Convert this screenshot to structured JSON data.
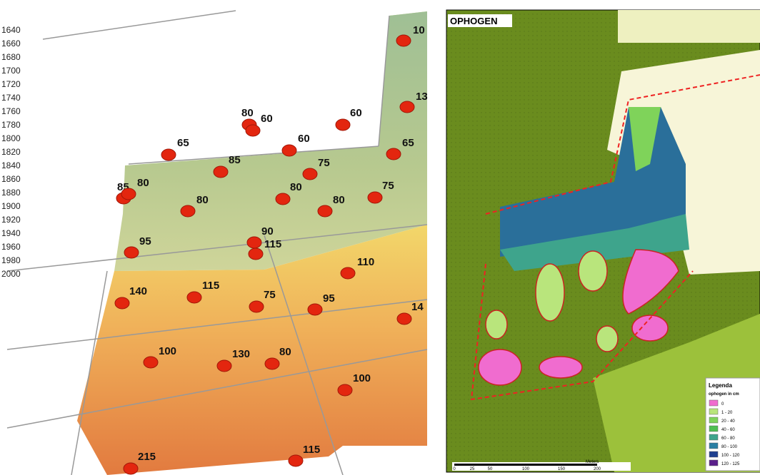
{
  "left_map": {
    "scale_labels": [
      "1640",
      "1660",
      "1680",
      "1700",
      "1720",
      "1740",
      "1760",
      "1780",
      "1800",
      "1820",
      "1840",
      "1860",
      "1880",
      "1900",
      "1920",
      "1940",
      "1960",
      "1980",
      "2000"
    ],
    "points": [
      "10",
      "13",
      "80",
      "60",
      "60",
      "65",
      "60",
      "65",
      "85",
      "75",
      "85",
      "80",
      "80",
      "80",
      "80",
      "75",
      "95",
      "90",
      "115",
      "110",
      "140",
      "115",
      "75",
      "95",
      "14",
      "100",
      "130",
      "80",
      "100",
      "215",
      "115"
    ]
  },
  "right_map": {
    "title": "OPHOGEN",
    "legend": {
      "title": "Legenda",
      "subtitle": "ophogen in cm",
      "items": [
        "0",
        "1 - 20",
        "20 - 40",
        "40 - 60",
        "60 - 80",
        "80 - 100",
        "100 - 120",
        "120 - 125"
      ]
    },
    "scalebar": {
      "ticks": [
        "0",
        "25",
        "50",
        "100",
        "150",
        "200"
      ],
      "unit": "Meters"
    }
  }
}
